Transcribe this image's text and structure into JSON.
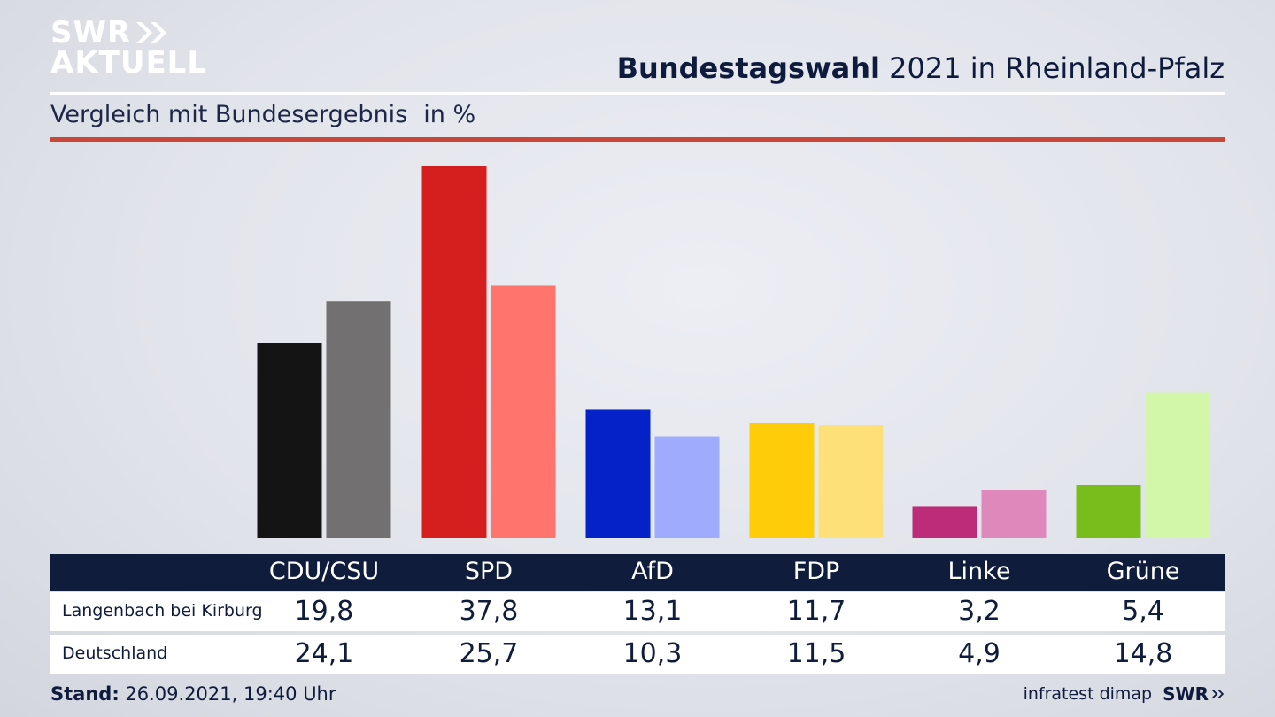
{
  "logo": {
    "line1": "SWR",
    "line2": "AKTUELL"
  },
  "header": {
    "title_bold": "Bundestagswahl",
    "title_rest": "2021 in Rheinland-Pfalz"
  },
  "subtitle": {
    "text": "Vergleich mit Bundesergebnis",
    "unit": "in %"
  },
  "colors": {
    "accent_rule": "#c9473a",
    "table_header": "#101c3c",
    "region": [
      "#141414",
      "#d51f1f",
      "#0422c8",
      "#ffcc0a",
      "#bd2c78",
      "#79bd1c"
    ],
    "national": [
      "#727070",
      "#ff746c",
      "#9eacfe",
      "#fde178",
      "#df88bb",
      "#d2f7a9"
    ]
  },
  "chart_data": {
    "type": "bar",
    "categories": [
      "CDU/CSU",
      "SPD",
      "AfD",
      "FDP",
      "Linke",
      "Grüne"
    ],
    "series": [
      {
        "name": "Langenbach bei Kirburg",
        "values": [
          19.8,
          37.8,
          13.1,
          11.7,
          3.2,
          5.4
        ]
      },
      {
        "name": "Deutschland",
        "values": [
          24.1,
          25.7,
          10.3,
          11.5,
          4.9,
          14.8
        ]
      }
    ],
    "ylim": [
      0,
      40
    ],
    "grid": false
  },
  "table": {
    "parties": [
      "CDU/CSU",
      "SPD",
      "AfD",
      "FDP",
      "Linke",
      "Grüne"
    ],
    "rows": [
      {
        "label": "Langenbach bei Kirburg",
        "values": [
          "19,8",
          "37,8",
          "13,1",
          "11,7",
          "3,2",
          "5,4"
        ]
      },
      {
        "label": "Deutschland",
        "values": [
          "24,1",
          "25,7",
          "10,3",
          "11,5",
          "4,9",
          "14,8"
        ]
      }
    ]
  },
  "footer": {
    "stand_label": "Stand:",
    "stand_value": "26.09.2021, 19:40 Uhr",
    "source": "infratest dimap",
    "brand": "SWR"
  }
}
